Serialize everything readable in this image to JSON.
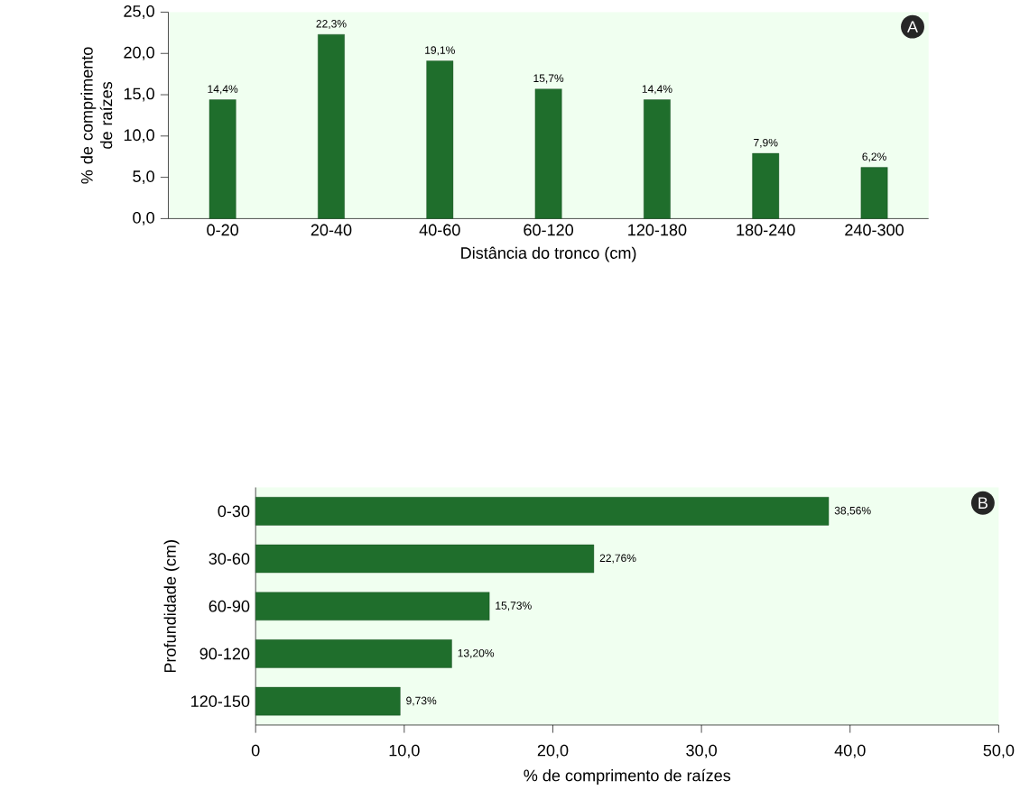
{
  "chart_data": [
    {
      "type": "bar",
      "categories": [
        "0-20",
        "20-40",
        "40-60",
        "60-120",
        "120-180",
        "180-240",
        "240-300"
      ],
      "values": [
        14.4,
        22.3,
        19.1,
        15.7,
        14.4,
        7.9,
        6.2
      ],
      "value_labels": [
        "14,4%",
        "22,3%",
        "19,1%",
        "15,7%",
        "14,4%",
        "7,9%",
        "6,2%"
      ],
      "color": "#1f6e2c",
      "ylim": [
        0,
        25
      ],
      "yticks": [
        {
          "value": 0,
          "label": "0,0"
        },
        {
          "value": 5,
          "label": "5,0"
        },
        {
          "value": 10,
          "label": "10,0"
        },
        {
          "value": 15,
          "label": "15,0"
        },
        {
          "value": 20,
          "label": "20,0"
        },
        {
          "value": 25,
          "label": "25,0"
        }
      ],
      "xlabel": "Distância do tronco (cm)",
      "ylabel": "% de comprimento de raízes",
      "annotations": [
        "A"
      ]
    },
    {
      "type": "bar",
      "orientation": "horizontal",
      "categories": [
        "0-30",
        "30-60",
        "60-90",
        "90-120",
        "120-150"
      ],
      "values": [
        38.56,
        22.76,
        15.73,
        13.2,
        9.73
      ],
      "value_labels": [
        "38,56%",
        "22,76%",
        "15,73%",
        "13,20%",
        "9,73%"
      ],
      "color": "#1f6e2c",
      "xlim": [
        0,
        50
      ],
      "xticks": [
        0,
        {
          "value": 10,
          "label": "10,0"
        },
        {
          "value": 20,
          "label": "20,0"
        },
        {
          "value": 30,
          "label": "30,0"
        },
        {
          "value": 40,
          "label": "40,0"
        },
        {
          "value": 50,
          "label": "50,0"
        }
      ],
      "xlabel": "% de comprimento de raízes",
      "ylabel": "Profundidade (cm)",
      "annotations": [
        "B"
      ]
    }
  ]
}
